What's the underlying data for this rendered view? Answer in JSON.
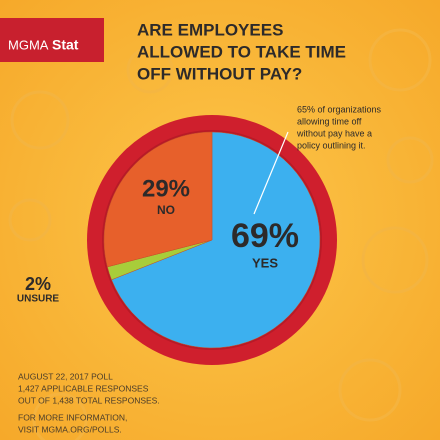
{
  "chart_data": {
    "type": "pie",
    "logo": {
      "brand": "MGMA",
      "product": "Stat"
    },
    "title": [
      "ARE EMPLOYEES",
      "ALLOWED TO TAKE TIME",
      "OFF WITHOUT PAY?"
    ],
    "categories": [
      "YES",
      "UNSURE",
      "NO"
    ],
    "values": [
      69,
      2,
      29
    ],
    "value_labels": [
      "69%",
      "2%",
      "29%"
    ],
    "colors": [
      "#3cb0ef",
      "#a8cd3a",
      "#e7602b"
    ],
    "ring_color": "#cf1f2d",
    "annotation": [
      "65% of organizations",
      "allowing time off",
      "without pay have a",
      "policy outlining it."
    ],
    "footer": [
      "AUGUST 22, 2017 POLL",
      "1,427 APPLICABLE RESPONSES",
      "OUT OF 1,438 TOTAL RESPONSES.",
      "FOR MORE INFORMATION,",
      "VISIT MGMA.ORG/POLLS."
    ]
  }
}
